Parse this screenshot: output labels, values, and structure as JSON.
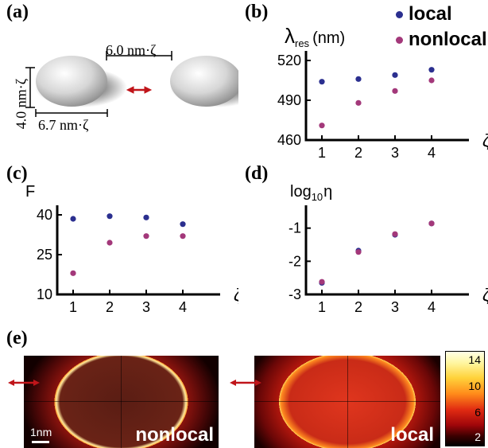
{
  "panels": {
    "a": "(a)",
    "b": "(b)",
    "c": "(c)",
    "d": "(d)",
    "e": "(e)"
  },
  "panel_a": {
    "gap_label": "6.0 nm·ζ",
    "height_label": "4.0 nm·ζ",
    "width_label": "6.7 nm·ζ"
  },
  "legend": {
    "local": "local",
    "nonlocal": "nonlocal",
    "local_color": "#2b2f8f",
    "nonlocal_color": "#a3387a"
  },
  "panel_e": {
    "left_label": "nonlocal",
    "right_label": "local",
    "scalebar_label": "1nm",
    "colorbar_ticks": [
      "14",
      "10",
      "6",
      "2"
    ]
  },
  "chart_data": [
    {
      "id": "b",
      "type": "scatter",
      "ylabel_main": "λ",
      "ylabel_sub": "res",
      "ylabel_unit": "(nm)",
      "xlabel": "ζ",
      "x": [
        1,
        2,
        3,
        4
      ],
      "xticks": [
        "1",
        "2",
        "3",
        "4"
      ],
      "yticks": [
        "460",
        "490",
        "520"
      ],
      "ylim": [
        460,
        520
      ],
      "series": [
        {
          "name": "local",
          "values": [
            504,
            506,
            509,
            513
          ]
        },
        {
          "name": "nonlocal",
          "values": [
            471,
            488,
            497,
            505
          ]
        }
      ]
    },
    {
      "id": "c",
      "type": "scatter",
      "ylabel_main": "F",
      "xlabel": "ζ",
      "x": [
        1,
        2,
        3,
        4
      ],
      "xticks": [
        "1",
        "2",
        "3",
        "4"
      ],
      "yticks": [
        "10",
        "25",
        "40"
      ],
      "ylim": [
        10,
        40
      ],
      "series": [
        {
          "name": "local",
          "values": [
            38.5,
            39.5,
            39,
            36.5
          ]
        },
        {
          "name": "nonlocal",
          "values": [
            18,
            29.5,
            32,
            32
          ]
        }
      ]
    },
    {
      "id": "d",
      "type": "scatter",
      "ylabel_main": "log",
      "ylabel_sub": "10",
      "ylabel_unit": "η",
      "xlabel": "ζ",
      "x": [
        1,
        2,
        3,
        4
      ],
      "xticks": [
        "1",
        "2",
        "3",
        "4"
      ],
      "yticks": [
        "-3",
        "-2",
        "-1"
      ],
      "ylim": [
        -3,
        -0.6
      ],
      "series": [
        {
          "name": "local",
          "values": [
            -2.65,
            -1.68,
            -1.2,
            -0.86
          ]
        },
        {
          "name": "nonlocal",
          "values": [
            -2.62,
            -1.72,
            -1.18,
            -0.86
          ]
        }
      ]
    }
  ]
}
